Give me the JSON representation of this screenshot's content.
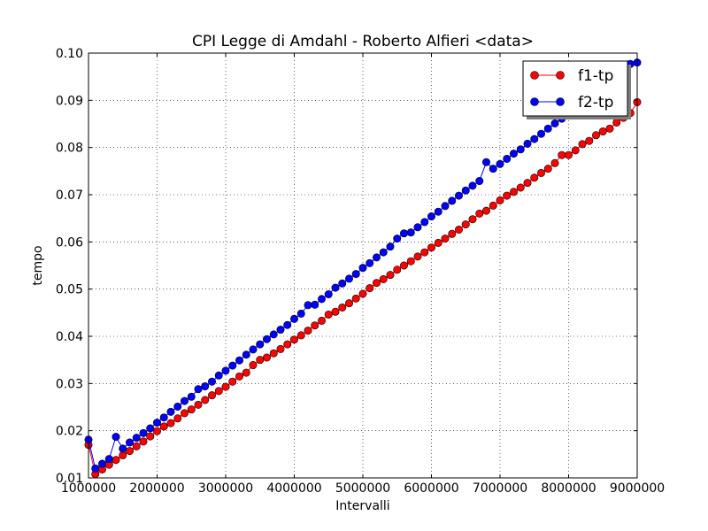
{
  "chart_data": {
    "type": "line",
    "title": "CPI  Legge di Amdahl  -   Roberto Alfieri  <data>",
    "xlabel": "Intervalli",
    "ylabel": "tempo",
    "xlim": [
      1000000,
      9000000
    ],
    "ylim": [
      0.01,
      0.1
    ],
    "x_ticks": [
      1000000,
      2000000,
      3000000,
      4000000,
      5000000,
      6000000,
      7000000,
      8000000,
      9000000
    ],
    "x_tick_labels": [
      "1000000",
      "2000000",
      "3000000",
      "4000000",
      "5000000",
      "6000000",
      "7000000",
      "8000000",
      "9000000"
    ],
    "y_ticks": [
      0.01,
      0.02,
      0.03,
      0.04,
      0.05,
      0.06,
      0.07,
      0.08,
      0.09,
      0.1
    ],
    "y_tick_labels": [
      "0.01",
      "0.02",
      "0.03",
      "0.04",
      "0.05",
      "0.06",
      "0.07",
      "0.08",
      "0.09",
      "0.10"
    ],
    "grid": true,
    "legend_position": "top-right",
    "x": [
      1000000,
      1100000,
      1200000,
      1300000,
      1400000,
      1500000,
      1600000,
      1700000,
      1800000,
      1900000,
      2000000,
      2100000,
      2200000,
      2300000,
      2400000,
      2500000,
      2600000,
      2700000,
      2800000,
      2900000,
      3000000,
      3100000,
      3200000,
      3300000,
      3400000,
      3500000,
      3600000,
      3700000,
      3800000,
      3900000,
      4000000,
      4100000,
      4200000,
      4300000,
      4400000,
      4500000,
      4600000,
      4700000,
      4800000,
      4900000,
      5000000,
      5100000,
      5200000,
      5300000,
      5400000,
      5500000,
      5600000,
      5700000,
      5800000,
      5900000,
      6000000,
      6100000,
      6200000,
      6300000,
      6400000,
      6500000,
      6600000,
      6700000,
      6800000,
      6900000,
      7000000,
      7100000,
      7200000,
      7300000,
      7400000,
      7500000,
      7600000,
      7700000,
      7800000,
      7900000,
      8000000,
      8100000,
      8200000,
      8300000,
      8400000,
      8500000,
      8600000,
      8700000,
      8800000,
      8900000,
      9000000
    ],
    "series": [
      {
        "name": "f1-tp",
        "color": "#ff0000",
        "values": [
          0.017,
          0.0108,
          0.0118,
          0.0128,
          0.0138,
          0.0148,
          0.0157,
          0.0167,
          0.0177,
          0.0188,
          0.0199,
          0.0209,
          0.0216,
          0.0226,
          0.0237,
          0.0245,
          0.0255,
          0.0265,
          0.0275,
          0.0284,
          0.0293,
          0.0304,
          0.0315,
          0.0323,
          0.0339,
          0.035,
          0.0355,
          0.0364,
          0.0373,
          0.0383,
          0.0393,
          0.0402,
          0.0412,
          0.0423,
          0.0433,
          0.0446,
          0.0452,
          0.0461,
          0.047,
          0.048,
          0.049,
          0.0502,
          0.0513,
          0.0521,
          0.053,
          0.0541,
          0.055,
          0.0559,
          0.0569,
          0.0578,
          0.0588,
          0.0598,
          0.0607,
          0.0617,
          0.0626,
          0.0637,
          0.0648,
          0.066,
          0.0666,
          0.0677,
          0.0688,
          0.0698,
          0.0706,
          0.0715,
          0.0725,
          0.0736,
          0.0746,
          0.0755,
          0.0767,
          0.0784,
          0.0784,
          0.0794,
          0.0807,
          0.0814,
          0.0826,
          0.0834,
          0.084,
          0.0853,
          0.0863,
          0.0873,
          0.0896
        ]
      },
      {
        "name": "f2-tp",
        "color": "#0000ff",
        "values": [
          0.0181,
          0.012,
          0.013,
          0.014,
          0.0187,
          0.0162,
          0.0175,
          0.0185,
          0.0195,
          0.0205,
          0.0217,
          0.0228,
          0.024,
          0.0251,
          0.0263,
          0.0272,
          0.0288,
          0.0294,
          0.0304,
          0.0317,
          0.0327,
          0.0338,
          0.0349,
          0.0361,
          0.0372,
          0.0383,
          0.0394,
          0.0404,
          0.0414,
          0.0424,
          0.0437,
          0.0448,
          0.0466,
          0.0467,
          0.0479,
          0.0489,
          0.0503,
          0.0512,
          0.0522,
          0.0532,
          0.0545,
          0.0555,
          0.0567,
          0.0578,
          0.059,
          0.0607,
          0.0618,
          0.062,
          0.0631,
          0.0642,
          0.0654,
          0.0664,
          0.0676,
          0.0687,
          0.0698,
          0.0709,
          0.0719,
          0.0729,
          0.0769,
          0.0755,
          0.0765,
          0.0776,
          0.0787,
          0.0796,
          0.0808,
          0.0818,
          0.0829,
          0.084,
          0.0851,
          0.0861,
          0.0872,
          0.0884,
          0.0895,
          0.0906,
          0.0917,
          0.0929,
          0.0939,
          0.0951,
          0.0963,
          0.0977,
          0.098
        ]
      }
    ]
  }
}
